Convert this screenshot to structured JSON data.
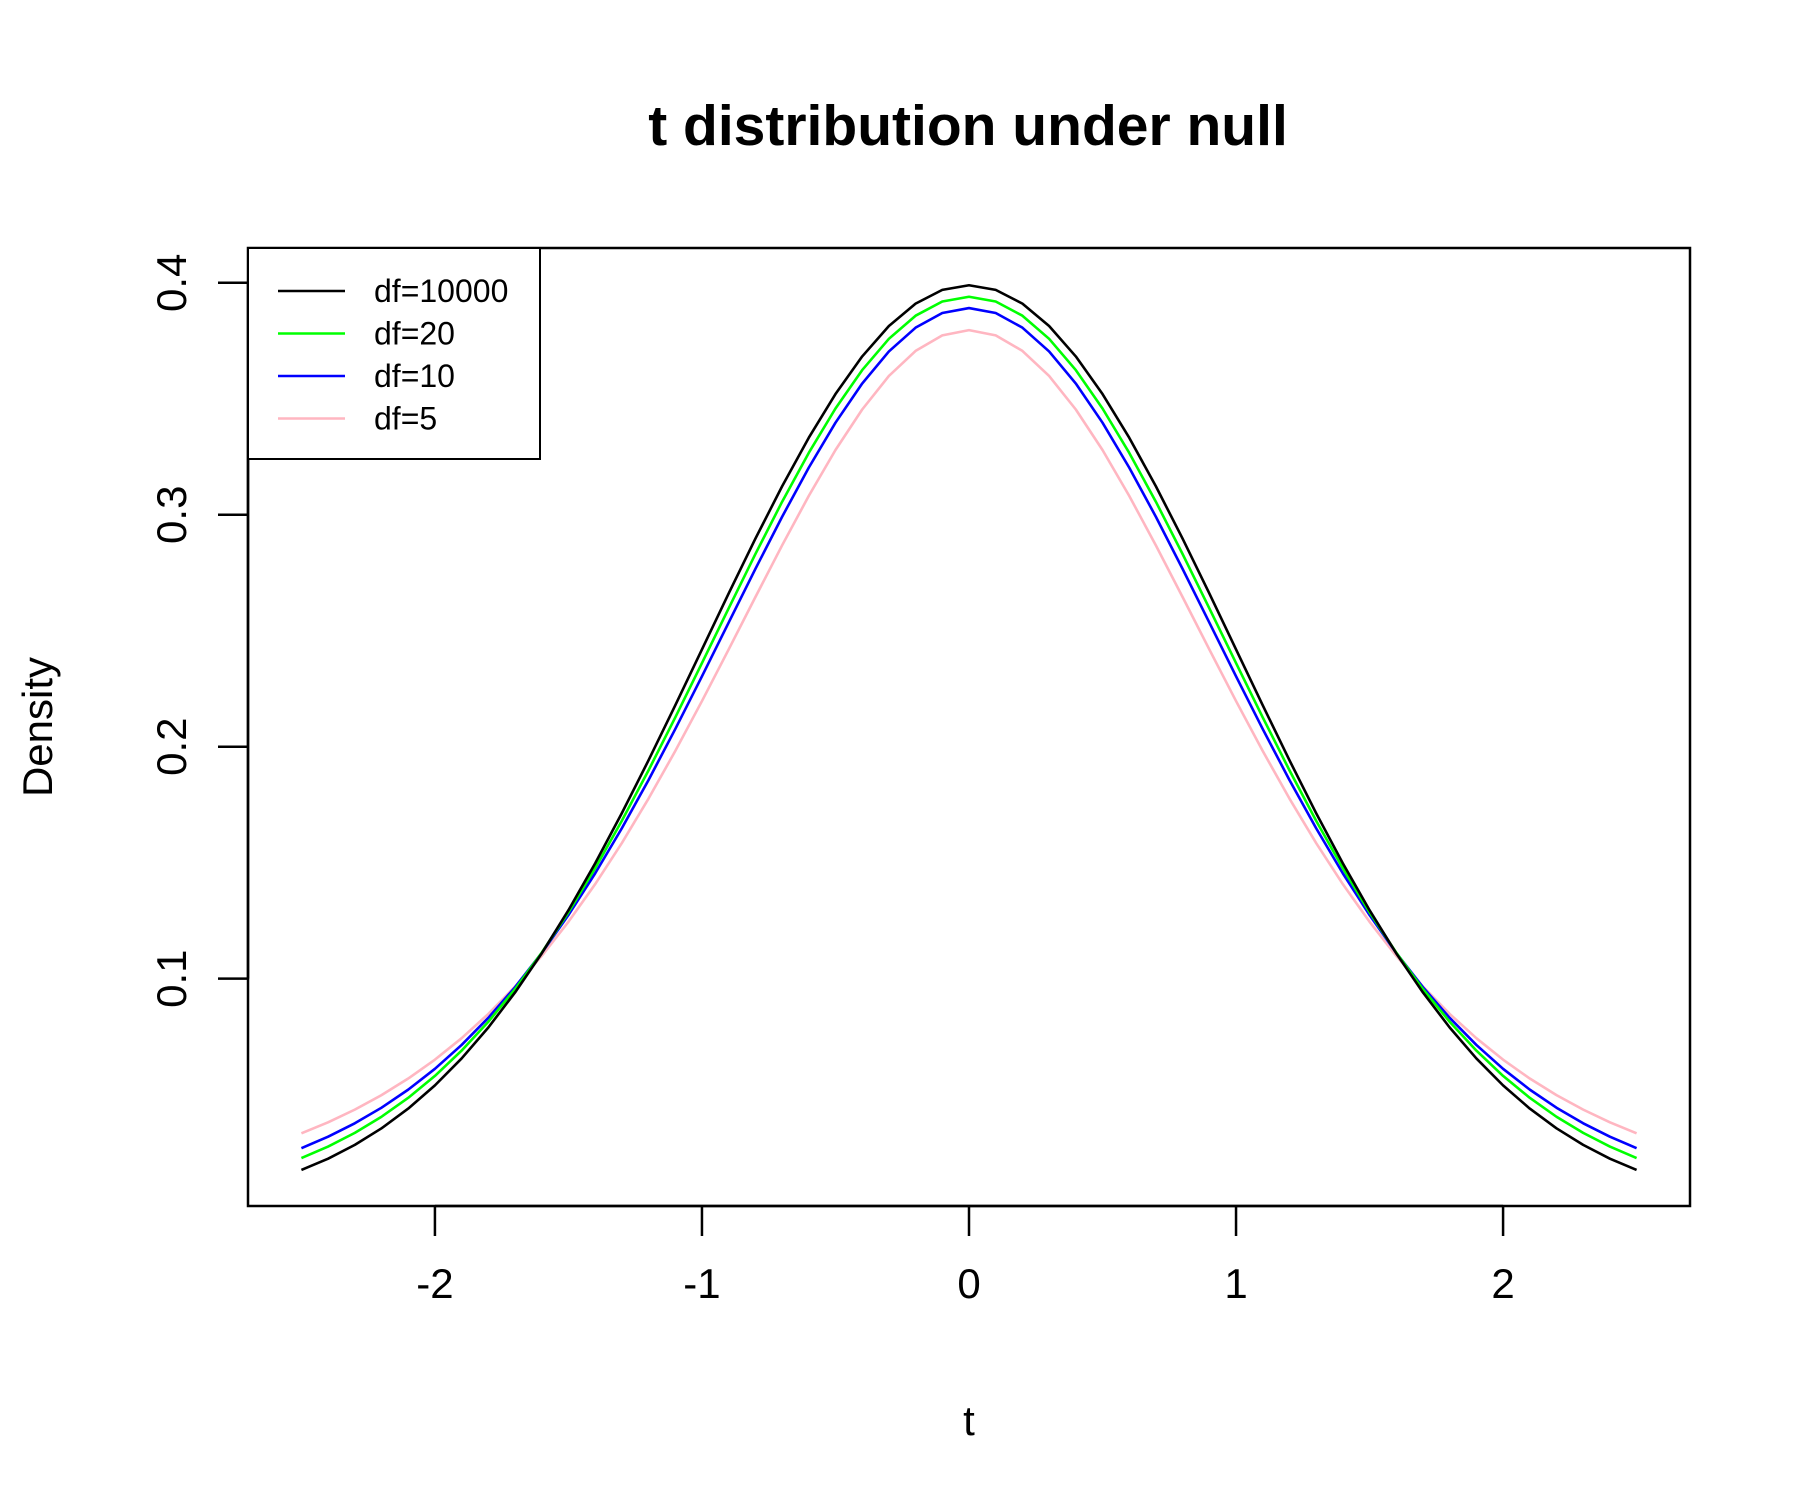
{
  "chart_data": {
    "type": "line",
    "title": "t distribution under null",
    "xlabel": "t",
    "ylabel": "Density",
    "xlim": [
      -2.7,
      2.7
    ],
    "ylim": [
      0.002,
      0.415
    ],
    "x_ticks": [
      -2,
      -1,
      0,
      1,
      2
    ],
    "x_tick_labels": [
      "-2",
      "-1",
      "0",
      "1",
      "2"
    ],
    "y_ticks": [
      0.1,
      0.2,
      0.3,
      0.4
    ],
    "y_tick_labels": [
      "0.1",
      "0.2",
      "0.3",
      "0.4"
    ],
    "grid": false,
    "legend_position": "top-left",
    "x_range": [
      -2.5,
      2.5
    ],
    "x_step": 0.1,
    "series": [
      {
        "name": "df=10000",
        "df": 10000,
        "color": "#000000"
      },
      {
        "name": "df=20",
        "df": 20,
        "color": "#00ff00"
      },
      {
        "name": "df=10",
        "df": 10,
        "color": "#0000ff"
      },
      {
        "name": "df=5",
        "df": 5,
        "color": "#ffb6c1"
      }
    ]
  }
}
